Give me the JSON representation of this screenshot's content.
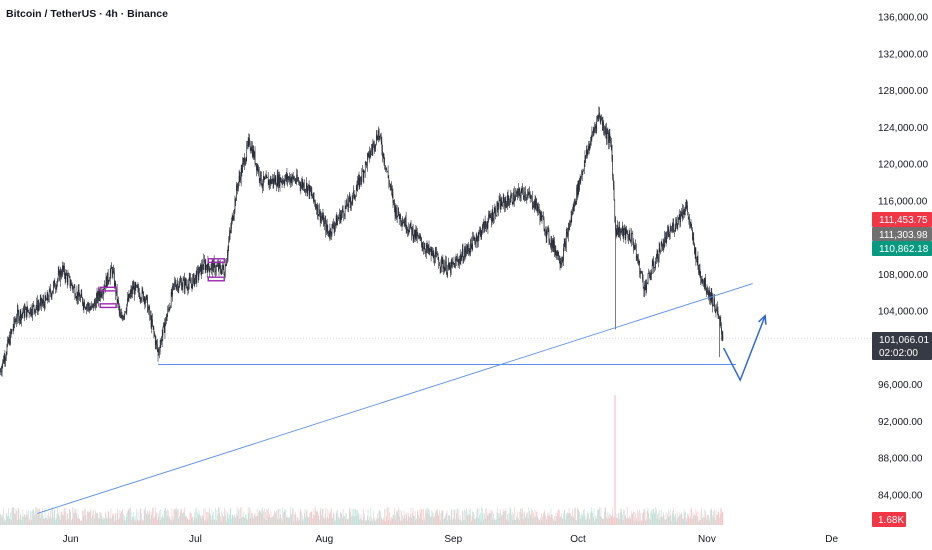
{
  "header": {
    "title": "Bitcoin / TetherUS · 4h · Binance"
  },
  "colors": {
    "candle": "#222631",
    "trendline": "#5b8ef0",
    "arrow": "#2c67e0",
    "marker": "#9c27b0",
    "vol_up": "#a6d9cf",
    "vol_down": "#f3b3b7",
    "tag_red": "#f23645",
    "tag_gray": "#707070",
    "tag_green": "#089981",
    "tag_dark": "#363a45"
  },
  "price_tags": {
    "high": "111,453.75",
    "mid": "111,303.98",
    "low": "110,862.18",
    "last": "101,066.01",
    "countdown": "02:02:00",
    "volume": "1.68K"
  },
  "chart_data": {
    "type": "candlestick",
    "title": "Bitcoin / TetherUS · 4h · Binance",
    "y_ticks": [
      "136,000.00",
      "132,000.00",
      "128,000.00",
      "124,000.00",
      "120,000.00",
      "116,000.00",
      "112,000.00",
      "108,000.00",
      "104,000.00",
      "100,000.00",
      "96,000.00",
      "92,000.00",
      "88,000.00",
      "84,000.00"
    ],
    "ylim": [
      82000,
      137500
    ],
    "x_ticks": [
      "Jun",
      "Jul",
      "Aug",
      "Sep",
      "Oct",
      "Nov",
      "De"
    ],
    "price_path": [
      {
        "date": "2025-05-15",
        "price": 97500
      },
      {
        "date": "2025-05-19",
        "price": 103500
      },
      {
        "date": "2025-05-26",
        "price": 105000
      },
      {
        "date": "2025-05-30",
        "price": 108500
      },
      {
        "date": "2025-06-03",
        "price": 105500
      },
      {
        "date": "2025-06-06",
        "price": 104200
      },
      {
        "date": "2025-06-11",
        "price": 108500
      },
      {
        "date": "2025-06-13",
        "price": 103000
      },
      {
        "date": "2025-06-16",
        "price": 106500
      },
      {
        "date": "2025-06-19",
        "price": 105500
      },
      {
        "date": "2025-06-22",
        "price": 99500
      },
      {
        "date": "2025-06-26",
        "price": 107000
      },
      {
        "date": "2025-06-30",
        "price": 107000
      },
      {
        "date": "2025-07-03",
        "price": 109000
      },
      {
        "date": "2025-07-08",
        "price": 108500
      },
      {
        "date": "2025-07-11",
        "price": 117500
      },
      {
        "date": "2025-07-14",
        "price": 122500
      },
      {
        "date": "2025-07-17",
        "price": 118000
      },
      {
        "date": "2025-07-24",
        "price": 118500
      },
      {
        "date": "2025-07-28",
        "price": 117500
      },
      {
        "date": "2025-08-02",
        "price": 112500
      },
      {
        "date": "2025-08-08",
        "price": 116500
      },
      {
        "date": "2025-08-14",
        "price": 123500
      },
      {
        "date": "2025-08-18",
        "price": 115000
      },
      {
        "date": "2025-08-26",
        "price": 110500
      },
      {
        "date": "2025-08-31",
        "price": 108500
      },
      {
        "date": "2025-09-05",
        "price": 111000
      },
      {
        "date": "2025-09-12",
        "price": 115500
      },
      {
        "date": "2025-09-18",
        "price": 117000
      },
      {
        "date": "2025-09-21",
        "price": 115500
      },
      {
        "date": "2025-09-24",
        "price": 112000
      },
      {
        "date": "2025-09-27",
        "price": 109500
      },
      {
        "date": "2025-10-01",
        "price": 117500
      },
      {
        "date": "2025-10-03",
        "price": 121000
      },
      {
        "date": "2025-10-06",
        "price": 125500
      },
      {
        "date": "2025-10-09",
        "price": 122000
      },
      {
        "date": "2025-10-10",
        "price": 113000
      },
      {
        "date": "2025-10-14",
        "price": 112000
      },
      {
        "date": "2025-10-17",
        "price": 106500
      },
      {
        "date": "2025-10-21",
        "price": 111000
      },
      {
        "date": "2025-10-27",
        "price": 115500
      },
      {
        "date": "2025-10-30",
        "price": 108500
      },
      {
        "date": "2025-11-03",
        "price": 104500
      },
      {
        "date": "2025-11-05",
        "price": 101000
      }
    ],
    "wicks": [
      {
        "date": "2025-10-10",
        "low": 102000
      },
      {
        "date": "2025-06-22",
        "low": 98500
      },
      {
        "date": "2025-11-04",
        "low": 99000
      }
    ],
    "horizontal_support": {
      "price": 98200,
      "from": "2025-06-22",
      "to": "2025-11-08"
    },
    "trendline": {
      "from": {
        "date": "2025-05-24",
        "price": 82000
      },
      "to": {
        "date": "2025-11-12",
        "price": 107000
      }
    },
    "projection_arrow": [
      {
        "date": "2025-11-05",
        "price": 100000
      },
      {
        "date": "2025-11-09",
        "price": 96500
      },
      {
        "date": "2025-11-15",
        "price": 103500
      }
    ],
    "marker_levels": [
      {
        "date": "2025-06-10",
        "price": 106400
      },
      {
        "date": "2025-06-10",
        "price": 104600
      },
      {
        "date": "2025-07-06",
        "price": 109500
      },
      {
        "date": "2025-07-06",
        "price": 107500
      }
    ],
    "volume_spike_date": "2025-10-10"
  }
}
